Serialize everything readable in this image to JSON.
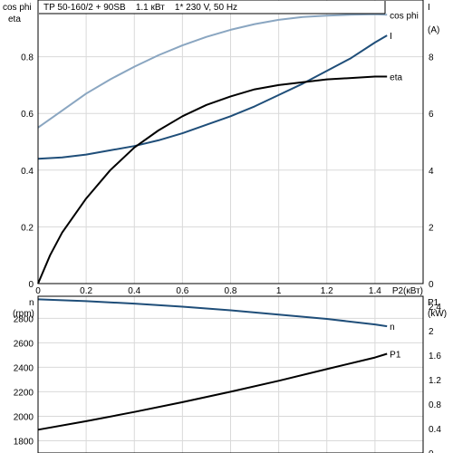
{
  "chart_data": [
    {
      "type": "line",
      "title": "TP 50-160/2 + 90SB    1.1 кВт    1* 230 V, 50 Hz",
      "xlabel": "P2(кВт)",
      "xlim": [
        0,
        1.6
      ],
      "x_ticks": [
        "0",
        "0.2",
        "0.4",
        "0.6",
        "0.8",
        "1",
        "1.2",
        "1.4"
      ],
      "left_axis": {
        "labels": [
          "cos phi",
          "eta"
        ],
        "ylim": [
          0,
          1.0
        ],
        "ticks": [
          "0",
          "0.2",
          "0.4",
          "0.6",
          "0.8"
        ]
      },
      "right_axis": {
        "labels": [
          "I",
          "(A)"
        ],
        "ylim": [
          0,
          10
        ],
        "ticks": [
          "0",
          "2",
          "4",
          "6",
          "8"
        ]
      },
      "grid": true,
      "series": [
        {
          "name": "cos phi",
          "axis": "left",
          "color": "#8aa6c1",
          "x": [
            0,
            0.1,
            0.2,
            0.3,
            0.4,
            0.5,
            0.6,
            0.7,
            0.8,
            0.9,
            1.0,
            1.1,
            1.2,
            1.3,
            1.4,
            1.45
          ],
          "y": [
            0.55,
            0.61,
            0.67,
            0.72,
            0.765,
            0.805,
            0.84,
            0.87,
            0.895,
            0.915,
            0.93,
            0.94,
            0.945,
            0.948,
            0.95,
            0.948
          ]
        },
        {
          "name": "I",
          "axis": "right",
          "color": "#1f4e79",
          "x": [
            0,
            0.1,
            0.2,
            0.3,
            0.4,
            0.5,
            0.6,
            0.7,
            0.8,
            0.9,
            1.0,
            1.1,
            1.2,
            1.3,
            1.4,
            1.45
          ],
          "y": [
            4.4,
            4.45,
            4.55,
            4.7,
            4.85,
            5.05,
            5.3,
            5.6,
            5.9,
            6.25,
            6.65,
            7.05,
            7.5,
            7.95,
            8.5,
            8.75
          ]
        },
        {
          "name": "eta",
          "axis": "left",
          "color": "#000000",
          "x": [
            0,
            0.05,
            0.1,
            0.2,
            0.3,
            0.4,
            0.5,
            0.6,
            0.7,
            0.8,
            0.9,
            1.0,
            1.1,
            1.2,
            1.3,
            1.4,
            1.45
          ],
          "y": [
            0,
            0.1,
            0.18,
            0.3,
            0.4,
            0.48,
            0.54,
            0.59,
            0.63,
            0.66,
            0.685,
            0.7,
            0.71,
            0.72,
            0.725,
            0.73,
            0.73
          ]
        }
      ]
    },
    {
      "type": "line",
      "xlim": [
        0,
        1.6
      ],
      "left_axis": {
        "labels": [
          "n",
          "(rpm)"
        ],
        "ylim": [
          1700,
          2980
        ],
        "ticks": [
          "1800",
          "2000",
          "2200",
          "2400",
          "2600",
          "2800"
        ]
      },
      "right_axis": {
        "labels": [
          "P1",
          "(kW)"
        ],
        "ylim": [
          0,
          2.56
        ],
        "ticks": [
          "0",
          "0.4",
          "0.8",
          "1.2",
          "1.6",
          "2",
          "2.4"
        ]
      },
      "grid": true,
      "series": [
        {
          "name": "n",
          "axis": "left",
          "color": "#1f4e79",
          "x": [
            0,
            0.2,
            0.4,
            0.6,
            0.8,
            1.0,
            1.2,
            1.4,
            1.45
          ],
          "y": [
            2955,
            2940,
            2920,
            2895,
            2865,
            2830,
            2795,
            2750,
            2735
          ]
        },
        {
          "name": "P1",
          "axis": "right",
          "color": "#000000",
          "x": [
            0,
            0.2,
            0.4,
            0.6,
            0.8,
            1.0,
            1.2,
            1.4,
            1.45
          ],
          "y": [
            0.38,
            0.52,
            0.67,
            0.83,
            1.0,
            1.18,
            1.37,
            1.56,
            1.62
          ]
        }
      ]
    }
  ]
}
